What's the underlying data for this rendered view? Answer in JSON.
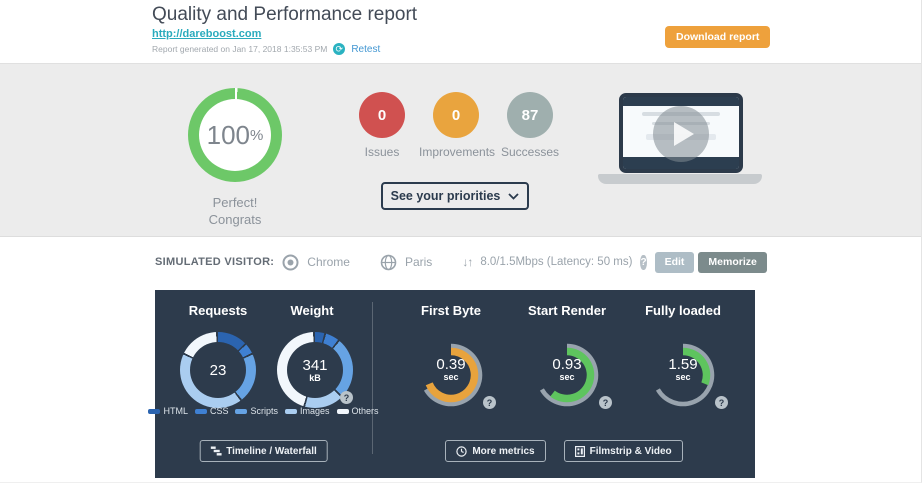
{
  "header": {
    "title": "Quality and Performance report",
    "url": "http://dareboost.com",
    "generated": "Report generated on Jan 17, 2018 1:35:53 PM",
    "retest_label": "Retest",
    "download_button": "Download report"
  },
  "icons": {
    "retest": "⟳",
    "question": "?",
    "down_up_arrows": "↓↑",
    "chevron_down": "⌄"
  },
  "summary": {
    "score": {
      "value": "100",
      "unit": "%",
      "message_line1": "Perfect!",
      "message_line2": "Congrats",
      "ring_color": "#6dc868"
    },
    "counters": [
      {
        "value": "0",
        "label": "Issues",
        "color": "#d05150"
      },
      {
        "value": "0",
        "label": "Improvements",
        "color": "#e9a43e"
      },
      {
        "value": "87",
        "label": "Successes",
        "color": "#9fafae"
      }
    ],
    "priorities_button": "See your priorities"
  },
  "visitor": {
    "label": "SIMULATED VISITOR:",
    "browser": "Chrome",
    "location": "Paris",
    "bandwidth": "8.0/1.5Mbps (Latency: 50 ms)",
    "edit_button": "Edit",
    "memorize_button": "Memorize"
  },
  "metrics_panel": {
    "panel_color": "#2d3b4c",
    "track_color": "#98a3ad",
    "legend": [
      {
        "label": "HTML",
        "color": "#2b64b0"
      },
      {
        "label": "CSS",
        "color": "#3f80d2"
      },
      {
        "label": "Scripts",
        "color": "#66a3e4"
      },
      {
        "label": "Images",
        "color": "#aacdf0"
      },
      {
        "label": "Others",
        "color": "#f2f7fc"
      }
    ],
    "timeline_button": "Timeline / Waterfall",
    "more_metrics_button": "More metrics",
    "filmstrip_button": "Filmstrip & Video"
  },
  "chart_data": [
    {
      "type": "pie",
      "title": "Requests",
      "center_label": "23",
      "total": 23,
      "categories": [
        "HTML",
        "CSS",
        "Scripts",
        "Images",
        "Others"
      ],
      "values": [
        3,
        1,
        5,
        10,
        4
      ],
      "colors": [
        "#2b64b0",
        "#3f80d2",
        "#66a3e4",
        "#aacdf0",
        "#f2f7fc"
      ]
    },
    {
      "type": "pie",
      "title": "Weight",
      "center_label": "341",
      "unit": "kB",
      "total": 341,
      "categories": [
        "HTML",
        "CSS",
        "Scripts",
        "Images",
        "Others"
      ],
      "values": [
        14,
        20,
        92,
        58,
        157
      ],
      "colors": [
        "#2b64b0",
        "#3f80d2",
        "#66a3e4",
        "#aacdf0",
        "#f2f7fc"
      ]
    },
    {
      "type": "gauge",
      "title": "First Byte",
      "value_label": "0.39",
      "value": 0.39,
      "unit": "sec",
      "fill_deg": 248,
      "color": "#e8a33d"
    },
    {
      "type": "gauge",
      "title": "Start Render",
      "value_label": "0.93",
      "value": 0.93,
      "unit": "sec",
      "fill_deg": 218,
      "color": "#5ec45e"
    },
    {
      "type": "gauge",
      "title": "Fully loaded",
      "value_label": "1.59",
      "value": 1.59,
      "unit": "sec",
      "fill_deg": 112,
      "color": "#5ec45e"
    }
  ]
}
